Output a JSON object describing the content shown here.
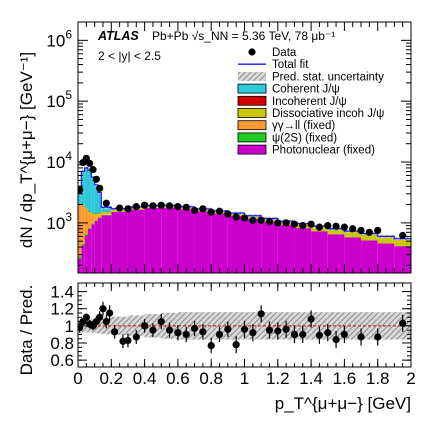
{
  "chart_data": {
    "type": "stacked-histogram-with-ratio",
    "experiment": "ATLAS",
    "collision_label": "Pb+Pb √s_NN = 5.36 TeV, 78 μb⁻¹",
    "selection": "2 < |y| < 2.5",
    "ylabel_main": "dN / dp_T^{μ+μ−} [GeV⁻¹]",
    "ylabel_ratio": "Data / Pred.",
    "xlabel": "p_T^{μ+μ−} [GeV]",
    "xlim": [
      0,
      2
    ],
    "ylim_main": [
      150,
      2000000
    ],
    "yscale_main": "log",
    "ylim_ratio": [
      0.52,
      1.5
    ],
    "legend": {
      "placement": "top-right",
      "entries": [
        {
          "label": "Data",
          "style": "marker",
          "color": "#000000"
        },
        {
          "label": "Total fit",
          "style": "line",
          "color": "#1a1aff"
        },
        {
          "label": "Pred. stat. uncertainty",
          "style": "hatch",
          "color": "#888888"
        },
        {
          "label": "Coherent J/ψ",
          "style": "fill",
          "color": "#2ec8d8"
        },
        {
          "label": "Incoherent J/ψ",
          "style": "fill",
          "color": "#d40000"
        },
        {
          "label": "Dissociative incoh J/ψ",
          "style": "fill",
          "color": "#c8c800"
        },
        {
          "label": "γγ→ll (fixed)",
          "style": "fill",
          "color": "#ff9a30"
        },
        {
          "label": "ψ(2S) (fixed)",
          "style": "fill",
          "color": "#22cc22"
        },
        {
          "label": "Photonuclear (fixed)",
          "style": "fill",
          "color": "#cc00cc"
        }
      ]
    },
    "x_ticks_main": [
      {
        "value": 0,
        "label": ""
      },
      {
        "value": 0.2,
        "label": ""
      },
      {
        "value": 0.4,
        "label": ""
      },
      {
        "value": 0.6,
        "label": ""
      },
      {
        "value": 0.8,
        "label": ""
      },
      {
        "value": 1.0,
        "label": ""
      },
      {
        "value": 1.2,
        "label": ""
      },
      {
        "value": 1.4,
        "label": ""
      },
      {
        "value": 1.6,
        "label": ""
      },
      {
        "value": 1.8,
        "label": ""
      },
      {
        "value": 2.0,
        "label": ""
      }
    ],
    "x_ticks_ratio": [
      {
        "value": 0,
        "label": "0"
      },
      {
        "value": 0.2,
        "label": "0.2"
      },
      {
        "value": 0.4,
        "label": "0.4"
      },
      {
        "value": 0.6,
        "label": "0.6"
      },
      {
        "value": 0.8,
        "label": "0.8"
      },
      {
        "value": 1.0,
        "label": "1"
      },
      {
        "value": 1.2,
        "label": "1.2"
      },
      {
        "value": 1.4,
        "label": "1.4"
      },
      {
        "value": 1.6,
        "label": "1.6"
      },
      {
        "value": 1.8,
        "label": "1.8"
      },
      {
        "value": 2.0,
        "label": "2"
      }
    ],
    "y_ticks_main": [
      {
        "value": 1000,
        "base": "10",
        "exp": "3"
      },
      {
        "value": 10000,
        "base": "10",
        "exp": "4"
      },
      {
        "value": 100000,
        "base": "10",
        "exp": "5"
      },
      {
        "value": 1000000,
        "base": "10",
        "exp": "6"
      }
    ],
    "y_ticks_ratio": [
      {
        "value": 0.6,
        "label": "0.6"
      },
      {
        "value": 0.8,
        "label": "0.8"
      },
      {
        "value": 1.0,
        "label": "1"
      },
      {
        "value": 1.2,
        "label": "1.2"
      },
      {
        "value": 1.4,
        "label": "1.4"
      }
    ],
    "components": [
      {
        "name": "Photonuclear (fixed)",
        "color": "#cc00cc",
        "bins": [
          {
            "x0": 0,
            "x1": 0.02,
            "y": 260
          },
          {
            "x0": 0.02,
            "x1": 0.04,
            "y": 430
          },
          {
            "x0": 0.04,
            "x1": 0.06,
            "y": 620
          },
          {
            "x0": 0.06,
            "x1": 0.08,
            "y": 800
          },
          {
            "x0": 0.08,
            "x1": 0.1,
            "y": 950
          },
          {
            "x0": 0.1,
            "x1": 0.12,
            "y": 1080
          },
          {
            "x0": 0.12,
            "x1": 0.14,
            "y": 1200
          },
          {
            "x0": 0.14,
            "x1": 0.2,
            "y": 1330
          },
          {
            "x0": 0.2,
            "x1": 0.3,
            "y": 1520
          },
          {
            "x0": 0.3,
            "x1": 0.4,
            "y": 1650
          },
          {
            "x0": 0.4,
            "x1": 0.5,
            "y": 1760
          },
          {
            "x0": 0.5,
            "x1": 0.6,
            "y": 1780
          },
          {
            "x0": 0.6,
            "x1": 0.7,
            "y": 1680
          },
          {
            "x0": 0.7,
            "x1": 0.8,
            "y": 1540
          },
          {
            "x0": 0.8,
            "x1": 0.9,
            "y": 1420
          },
          {
            "x0": 0.9,
            "x1": 1.0,
            "y": 1300
          },
          {
            "x0": 1.0,
            "x1": 1.1,
            "y": 1160
          },
          {
            "x0": 1.1,
            "x1": 1.2,
            "y": 1030
          },
          {
            "x0": 1.2,
            "x1": 1.3,
            "y": 920
          },
          {
            "x0": 1.3,
            "x1": 1.4,
            "y": 820
          },
          {
            "x0": 1.4,
            "x1": 1.5,
            "y": 730
          },
          {
            "x0": 1.5,
            "x1": 1.6,
            "y": 650
          },
          {
            "x0": 1.6,
            "x1": 1.7,
            "y": 580
          },
          {
            "x0": 1.7,
            "x1": 1.8,
            "y": 515
          },
          {
            "x0": 1.8,
            "x1": 1.9,
            "y": 460
          },
          {
            "x0": 1.9,
            "x1": 2.0,
            "y": 415
          }
        ]
      },
      {
        "name": "ψ(2S) (fixed)",
        "color": "#22cc22",
        "bins": [
          {
            "x0": 0,
            "x1": 0.02,
            "y": 20
          },
          {
            "x0": 0.02,
            "x1": 0.04,
            "y": 30
          },
          {
            "x0": 0.04,
            "x1": 0.06,
            "y": 35
          },
          {
            "x0": 0.06,
            "x1": 0.08,
            "y": 35
          },
          {
            "x0": 0.08,
            "x1": 0.1,
            "y": 30
          },
          {
            "x0": 0.1,
            "x1": 0.12,
            "y": 28
          },
          {
            "x0": 0.12,
            "x1": 0.14,
            "y": 26
          },
          {
            "x0": 0.14,
            "x1": 0.2,
            "y": 24
          },
          {
            "x0": 0.2,
            "x1": 2.0,
            "y": 0
          }
        ]
      },
      {
        "name": "γγ→ll (fixed)",
        "color": "#ff9a30",
        "bins": [
          {
            "x0": 0,
            "x1": 0.02,
            "y": 1700
          },
          {
            "x0": 0.02,
            "x1": 0.04,
            "y": 1500
          },
          {
            "x0": 0.04,
            "x1": 0.06,
            "y": 1000
          },
          {
            "x0": 0.06,
            "x1": 0.08,
            "y": 600
          },
          {
            "x0": 0.08,
            "x1": 0.1,
            "y": 350
          },
          {
            "x0": 0.1,
            "x1": 0.12,
            "y": 180
          },
          {
            "x0": 0.12,
            "x1": 0.14,
            "y": 90
          },
          {
            "x0": 0.14,
            "x1": 0.2,
            "y": 25
          },
          {
            "x0": 0.2,
            "x1": 2.0,
            "y": 0
          }
        ]
      },
      {
        "name": "Dissociative incoh J/ψ",
        "color": "#c8c800",
        "bins": [
          {
            "x0": 0,
            "x1": 0.02,
            "y": 15
          },
          {
            "x0": 0.02,
            "x1": 0.04,
            "y": 40
          },
          {
            "x0": 0.04,
            "x1": 0.06,
            "y": 60
          },
          {
            "x0": 0.06,
            "x1": 0.08,
            "y": 80
          },
          {
            "x0": 0.08,
            "x1": 0.1,
            "y": 95
          },
          {
            "x0": 0.1,
            "x1": 0.12,
            "y": 110
          },
          {
            "x0": 0.12,
            "x1": 0.14,
            "y": 120
          },
          {
            "x0": 0.14,
            "x1": 0.2,
            "y": 130
          },
          {
            "x0": 0.2,
            "x1": 0.3,
            "y": 140
          },
          {
            "x0": 0.3,
            "x1": 0.4,
            "y": 150
          },
          {
            "x0": 0.4,
            "x1": 0.5,
            "y": 150
          },
          {
            "x0": 0.5,
            "x1": 0.6,
            "y": 150
          },
          {
            "x0": 0.6,
            "x1": 0.7,
            "y": 150
          },
          {
            "x0": 0.7,
            "x1": 0.8,
            "y": 150
          },
          {
            "x0": 0.8,
            "x1": 0.9,
            "y": 150
          },
          {
            "x0": 0.9,
            "x1": 1.0,
            "y": 150
          },
          {
            "x0": 1.0,
            "x1": 1.1,
            "y": 150
          },
          {
            "x0": 1.1,
            "x1": 1.2,
            "y": 150
          },
          {
            "x0": 1.2,
            "x1": 1.3,
            "y": 150
          },
          {
            "x0": 1.3,
            "x1": 1.4,
            "y": 150
          },
          {
            "x0": 1.4,
            "x1": 1.5,
            "y": 150
          },
          {
            "x0": 1.5,
            "x1": 1.6,
            "y": 150
          },
          {
            "x0": 1.6,
            "x1": 1.7,
            "y": 150
          },
          {
            "x0": 1.7,
            "x1": 1.8,
            "y": 150
          },
          {
            "x0": 1.8,
            "x1": 1.9,
            "y": 140
          },
          {
            "x0": 1.9,
            "x1": 2.0,
            "y": 135
          }
        ]
      },
      {
        "name": "Incoherent J/ψ",
        "color": "#d40000",
        "bins": [
          {
            "x0": 0,
            "x1": 0.02,
            "y": 5
          },
          {
            "x0": 0.02,
            "x1": 0.04,
            "y": 10
          },
          {
            "x0": 0.04,
            "x1": 0.06,
            "y": 15
          },
          {
            "x0": 0.06,
            "x1": 0.08,
            "y": 18
          },
          {
            "x0": 0.08,
            "x1": 0.1,
            "y": 20
          },
          {
            "x0": 0.1,
            "x1": 0.12,
            "y": 20
          },
          {
            "x0": 0.12,
            "x1": 0.14,
            "y": 20
          },
          {
            "x0": 0.14,
            "x1": 0.2,
            "y": 18
          },
          {
            "x0": 0.2,
            "x1": 0.3,
            "y": 15
          },
          {
            "x0": 0.3,
            "x1": 0.4,
            "y": 12
          },
          {
            "x0": 0.4,
            "x1": 0.5,
            "y": 10
          },
          {
            "x0": 0.5,
            "x1": 0.6,
            "y": 8
          },
          {
            "x0": 0.6,
            "x1": 0.7,
            "y": 6
          },
          {
            "x0": 0.7,
            "x1": 0.8,
            "y": 5
          },
          {
            "x0": 0.8,
            "x1": 2.0,
            "y": 0
          }
        ]
      },
      {
        "name": "Coherent J/ψ",
        "color": "#2ec8d8",
        "bins": [
          {
            "x0": 0,
            "x1": 0.02,
            "y": 1000
          },
          {
            "x0": 0.02,
            "x1": 0.04,
            "y": 5000
          },
          {
            "x0": 0.04,
            "x1": 0.06,
            "y": 6300
          },
          {
            "x0": 0.06,
            "x1": 0.08,
            "y": 5800
          },
          {
            "x0": 0.08,
            "x1": 0.1,
            "y": 4200
          },
          {
            "x0": 0.1,
            "x1": 0.12,
            "y": 2800
          },
          {
            "x0": 0.12,
            "x1": 0.14,
            "y": 1700
          },
          {
            "x0": 0.14,
            "x1": 0.2,
            "y": 280
          },
          {
            "x0": 0.2,
            "x1": 0.3,
            "y": 30
          },
          {
            "x0": 0.3,
            "x1": 0.4,
            "y": 10
          },
          {
            "x0": 0.4,
            "x1": 2.0,
            "y": 0
          }
        ]
      }
    ],
    "data_points": [
      {
        "x": 0.01,
        "y": 3500
      },
      {
        "x": 0.03,
        "y": 9800
      },
      {
        "x": 0.05,
        "y": 11500
      },
      {
        "x": 0.07,
        "y": 9500
      },
      {
        "x": 0.09,
        "y": 7500
      },
      {
        "x": 0.11,
        "y": 5200
      },
      {
        "x": 0.13,
        "y": 3700
      },
      {
        "x": 0.17,
        "y": 2100
      },
      {
        "x": 0.25,
        "y": 1750
      },
      {
        "x": 0.3,
        "y": 1700
      },
      {
        "x": 0.35,
        "y": 1850
      },
      {
        "x": 0.4,
        "y": 1950
      },
      {
        "x": 0.45,
        "y": 1900
      },
      {
        "x": 0.5,
        "y": 1950
      },
      {
        "x": 0.55,
        "y": 1900
      },
      {
        "x": 0.6,
        "y": 1850
      },
      {
        "x": 0.65,
        "y": 1800
      },
      {
        "x": 0.7,
        "y": 1600
      },
      {
        "x": 0.75,
        "y": 1700
      },
      {
        "x": 0.8,
        "y": 1500
      },
      {
        "x": 0.85,
        "y": 1550
      },
      {
        "x": 0.9,
        "y": 1400
      },
      {
        "x": 0.95,
        "y": 1250
      },
      {
        "x": 1.0,
        "y": 1200
      },
      {
        "x": 1.05,
        "y": 1100
      },
      {
        "x": 1.1,
        "y": 1100
      },
      {
        "x": 1.15,
        "y": 1050
      },
      {
        "x": 1.2,
        "y": 1000
      },
      {
        "x": 1.25,
        "y": 1000
      },
      {
        "x": 1.3,
        "y": 950
      },
      {
        "x": 1.35,
        "y": 900
      },
      {
        "x": 1.4,
        "y": 950
      },
      {
        "x": 1.45,
        "y": 850
      },
      {
        "x": 1.5,
        "y": 900
      },
      {
        "x": 1.55,
        "y": 880
      },
      {
        "x": 1.6,
        "y": 850
      },
      {
        "x": 1.65,
        "y": 800
      },
      {
        "x": 1.7,
        "y": 750
      },
      {
        "x": 1.75,
        "y": 700
      },
      {
        "x": 1.8,
        "y": 750
      },
      {
        "x": 1.95,
        "y": 620
      }
    ],
    "ratio_points": [
      {
        "x": 0.01,
        "y": 0.98,
        "err": 0.06
      },
      {
        "x": 0.03,
        "y": 1.05,
        "err": 0.04
      },
      {
        "x": 0.05,
        "y": 1.1,
        "err": 0.04
      },
      {
        "x": 0.07,
        "y": 1.02,
        "err": 0.05
      },
      {
        "x": 0.09,
        "y": 1.0,
        "err": 0.05
      },
      {
        "x": 0.11,
        "y": 1.05,
        "err": 0.06
      },
      {
        "x": 0.13,
        "y": 1.1,
        "err": 0.07
      },
      {
        "x": 0.15,
        "y": 1.2,
        "err": 0.08
      },
      {
        "x": 0.17,
        "y": 1.05,
        "err": 0.08
      },
      {
        "x": 0.19,
        "y": 1.15,
        "err": 0.09
      },
      {
        "x": 0.22,
        "y": 0.93,
        "err": 0.08
      },
      {
        "x": 0.27,
        "y": 0.82,
        "err": 0.08
      },
      {
        "x": 0.3,
        "y": 0.83,
        "err": 0.08
      },
      {
        "x": 0.35,
        "y": 0.87,
        "err": 0.08
      },
      {
        "x": 0.4,
        "y": 1.0,
        "err": 0.08
      },
      {
        "x": 0.45,
        "y": 0.95,
        "err": 0.08
      },
      {
        "x": 0.5,
        "y": 1.05,
        "err": 0.09
      },
      {
        "x": 0.55,
        "y": 0.95,
        "err": 0.09
      },
      {
        "x": 0.6,
        "y": 0.92,
        "err": 0.09
      },
      {
        "x": 0.65,
        "y": 0.9,
        "err": 0.09
      },
      {
        "x": 0.7,
        "y": 0.97,
        "err": 0.09
      },
      {
        "x": 0.75,
        "y": 0.93,
        "err": 0.09
      },
      {
        "x": 0.8,
        "y": 0.77,
        "err": 0.09
      },
      {
        "x": 0.85,
        "y": 0.9,
        "err": 0.09
      },
      {
        "x": 0.9,
        "y": 0.96,
        "err": 0.09
      },
      {
        "x": 0.95,
        "y": 0.78,
        "err": 0.1
      },
      {
        "x": 1.0,
        "y": 0.96,
        "err": 0.1
      },
      {
        "x": 1.05,
        "y": 0.92,
        "err": 0.1
      },
      {
        "x": 1.1,
        "y": 1.14,
        "err": 0.1
      },
      {
        "x": 1.15,
        "y": 0.95,
        "err": 0.1
      },
      {
        "x": 1.2,
        "y": 0.94,
        "err": 0.1
      },
      {
        "x": 1.25,
        "y": 0.96,
        "err": 0.1
      },
      {
        "x": 1.3,
        "y": 0.9,
        "err": 0.1
      },
      {
        "x": 1.35,
        "y": 0.9,
        "err": 0.1
      },
      {
        "x": 1.4,
        "y": 1.08,
        "err": 0.1
      },
      {
        "x": 1.45,
        "y": 0.89,
        "err": 0.1
      },
      {
        "x": 1.5,
        "y": 0.92,
        "err": 0.1
      },
      {
        "x": 1.55,
        "y": 0.84,
        "err": 0.1
      },
      {
        "x": 1.6,
        "y": 0.9,
        "err": 0.1
      },
      {
        "x": 1.7,
        "y": 0.87,
        "err": 0.1
      },
      {
        "x": 1.8,
        "y": 0.87,
        "err": 0.1
      },
      {
        "x": 1.95,
        "y": 1.03,
        "err": 0.1
      }
    ]
  }
}
